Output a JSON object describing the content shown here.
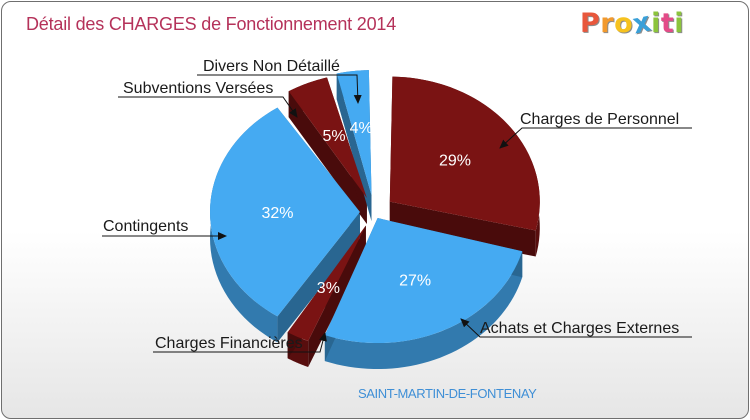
{
  "header": {
    "title": "Détail des CHARGES de Fonctionnement 2014",
    "logo_letters": [
      {
        "char": "P",
        "color": "#e8573c"
      },
      {
        "char": "r",
        "color": "#f29a2e"
      },
      {
        "char": "o",
        "color": "#f6c21f"
      },
      {
        "char": "x",
        "color": "#3aa0d8"
      },
      {
        "char": "i",
        "color": "#8cc43c"
      },
      {
        "char": "t",
        "color": "#e34b88"
      },
      {
        "char": "i",
        "color": "#8cc43c"
      }
    ]
  },
  "footer": {
    "commune": "SAINT-MARTIN-DE-FONTENAY"
  },
  "chart_data": {
    "type": "pie",
    "title": "Détail des CHARGES de Fonctionnement 2014",
    "slices": [
      {
        "name": "Charges de Personnel",
        "percent_label": "29%",
        "value": 29,
        "color": "#7a1313"
      },
      {
        "name": "Achats et Charges Externes",
        "percent_label": "27%",
        "value": 27,
        "color": "#45aaf2"
      },
      {
        "name": "Charges Financières",
        "percent_label": "3%",
        "value": 3,
        "color": "#7a1313"
      },
      {
        "name": "Contingents",
        "percent_label": "32%",
        "value": 32,
        "color": "#45aaf2"
      },
      {
        "name": "Subventions Versées",
        "percent_label": "5%",
        "value": 5,
        "color": "#7a1313"
      },
      {
        "name": "Divers Non Détaillé",
        "percent_label": "4%",
        "value": 4,
        "color": "#45aaf2"
      }
    ]
  }
}
